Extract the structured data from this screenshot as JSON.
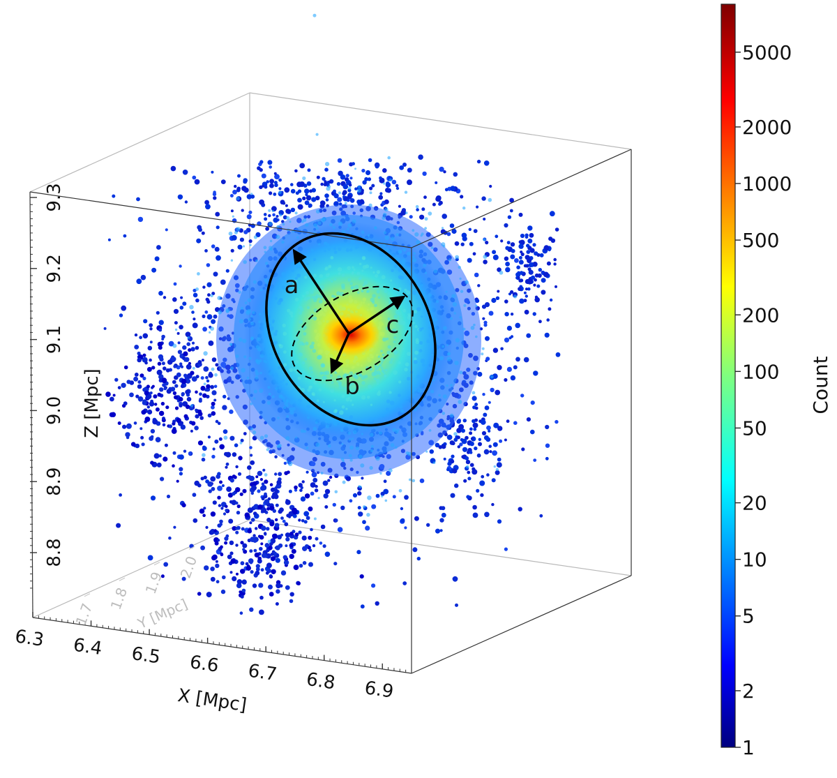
{
  "chart_data": {
    "type": "scatter",
    "subtype": "3d-density-scatter",
    "title": "",
    "axes": {
      "x": {
        "label": "X [Mpc]",
        "range": [
          6.3,
          6.95
        ],
        "ticks": [
          "6.3",
          "6.4",
          "6.5",
          "6.6",
          "6.7",
          "6.8",
          "6.9"
        ]
      },
      "y": {
        "label": "Y [Mpc]",
        "ticks": [
          "1.7",
          "1.8",
          "1.9",
          "2.0"
        ]
      },
      "z": {
        "label": "Z [Mpc]",
        "range": [
          8.75,
          9.3
        ],
        "ticks": [
          "8.8",
          "8.9",
          "9.0",
          "9.1",
          "9.2",
          "9.3"
        ]
      }
    },
    "colorbar": {
      "label": "Count",
      "scale": "log",
      "range": [
        1,
        9000
      ],
      "ticks": [
        "5000",
        "2000",
        "1000",
        "500",
        "200",
        "100",
        "50",
        "20",
        "10",
        "5",
        "2",
        "1"
      ],
      "tick_values": [
        5000,
        2000,
        1000,
        500,
        200,
        100,
        50,
        20,
        10,
        5,
        2,
        1
      ],
      "colormap": "jet"
    },
    "density": {
      "center": {
        "x": 6.715,
        "z": 9.1
      },
      "peak_count": 8000
    },
    "annotations": {
      "ellipse_labels": [
        "a",
        "b",
        "c"
      ]
    }
  },
  "colors": {
    "particle_low": "#0000cc",
    "particle_mid": "#00c8ff",
    "particle_high": "#ffff00",
    "particle_peak": "#cc0000",
    "axis_text": "#111111",
    "y_axis_text": "#bdbdbd"
  }
}
